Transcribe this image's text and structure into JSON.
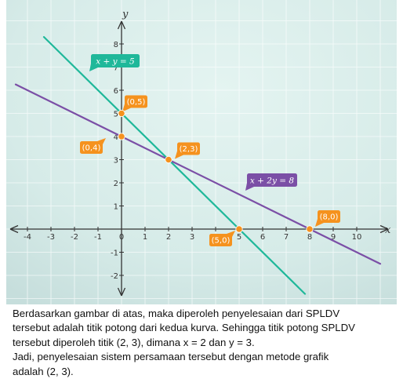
{
  "chart_data": {
    "type": "line",
    "title": "",
    "xlabel": "x",
    "ylabel": "y",
    "xlim": [
      -4.9,
      11.2
    ],
    "ylim": [
      -3,
      9.3
    ],
    "x_ticks": [
      -4,
      -3,
      -2,
      -1,
      0,
      1,
      2,
      3,
      4,
      5,
      6,
      7,
      8,
      9,
      10
    ],
    "y_ticks": [
      -2,
      -1,
      1,
      2,
      3,
      4,
      5,
      6,
      7,
      8
    ],
    "grid": true,
    "series": [
      {
        "name": "x + y = 5",
        "color": "#1fb89a",
        "x": [
          -3.3,
          7.8
        ],
        "y": [
          8.3,
          -2.8
        ]
      },
      {
        "name": "x + 2y = 8",
        "color": "#7b4fa6",
        "x": [
          -4.5,
          11
        ],
        "y": [
          6.25,
          -1.5
        ]
      }
    ],
    "points": [
      {
        "label": "(0,5)",
        "x": 0,
        "y": 5
      },
      {
        "label": "(0,4)",
        "x": 0,
        "y": 4
      },
      {
        "label": "(2,3)",
        "x": 2,
        "y": 3
      },
      {
        "label": "(5,0)",
        "x": 5,
        "y": 0
      },
      {
        "label": "(8,0)",
        "x": 8,
        "y": 0
      }
    ],
    "colors": {
      "point": "#f5921e",
      "axis": "#333333",
      "background": "#dcefec"
    }
  },
  "caption": {
    "line1": "Berdasarkan gambar di atas, maka diperoleh penyelesaian dari SPLDV",
    "line2": "tersebut adalah titik potong dari kedua kurva. Sehingga titik potong SPLDV",
    "line3": "tersebut diperoleh titik (2, 3), dimana x = 2 dan y = 3.",
    "line4": "Jadi, penyelesaian sistem persamaan tersebut dengan metode grafik",
    "line5": "adalah (2, 3)."
  }
}
